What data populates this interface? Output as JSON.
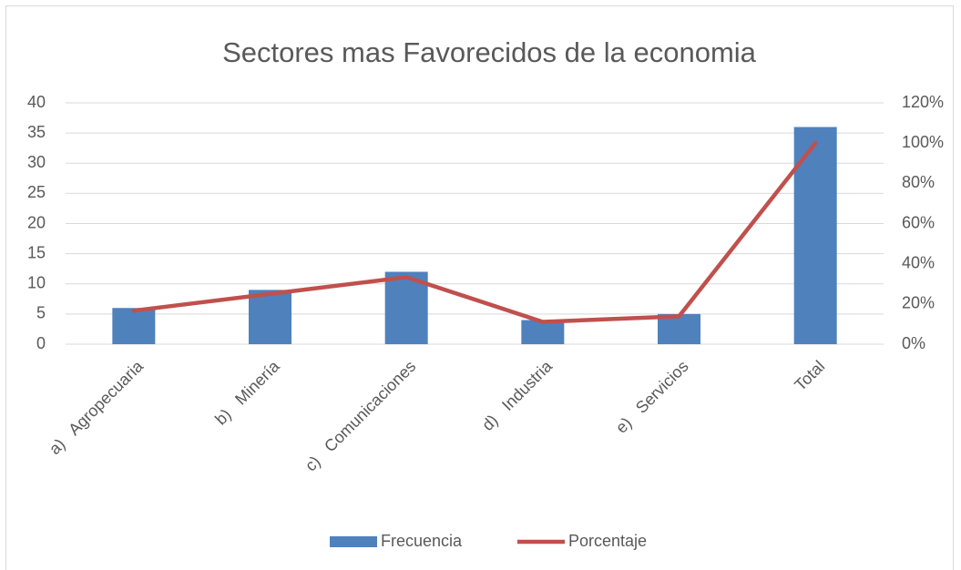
{
  "chart_data": {
    "type": "bar",
    "title": "Sectores mas Favorecidos de la economia",
    "categories": [
      "a)   Agropecuaria",
      "b)   Minería",
      "c)   Comunicaciones",
      "d)   Industria",
      "e)   Servicios",
      "Total"
    ],
    "series": [
      {
        "name": "Frecuencia",
        "color": "#4f81bd",
        "type": "bar",
        "values": [
          6,
          9,
          12,
          4,
          5,
          36
        ]
      },
      {
        "name": "Porcentaje",
        "color": "#c0504d",
        "type": "line",
        "axis": "y2",
        "values": [
          16.67,
          25,
          33.33,
          11.11,
          13.89,
          100
        ]
      }
    ],
    "ylim": [
      0,
      40
    ],
    "yticks": [
      0,
      5,
      10,
      15,
      20,
      25,
      30,
      35,
      40
    ],
    "y2lim": [
      0,
      120
    ],
    "y2ticks": [
      {
        "value": 0,
        "label": "0%"
      },
      {
        "value": 20,
        "label": "20%"
      },
      {
        "value": 40,
        "label": "40%"
      },
      {
        "value": 60,
        "label": "60%"
      },
      {
        "value": 80,
        "label": "80%"
      },
      {
        "value": 100,
        "label": "100%"
      },
      {
        "value": 120,
        "label": "120%"
      }
    ],
    "grid": true,
    "legend": "bottom"
  }
}
